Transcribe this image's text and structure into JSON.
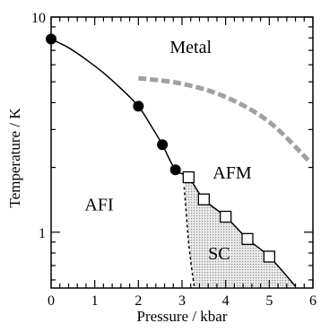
{
  "chart_data": {
    "type": "scatter",
    "title": "",
    "xlabel": "Pressure / kbar",
    "ylabel": "Temperature / K",
    "xlim": [
      0,
      6
    ],
    "ylim": [
      0.55,
      10
    ],
    "yscale": "log",
    "x_ticks": [
      0,
      1,
      2,
      3,
      4,
      5,
      6
    ],
    "y_ticks": [
      1,
      10
    ],
    "grid": false,
    "legend": "none",
    "regions": [
      {
        "label": "Metal",
        "x": 3.2,
        "y": 7.3
      },
      {
        "label": "AFI",
        "x": 1.1,
        "y": 1.35
      },
      {
        "label": "AFM",
        "x": 4.15,
        "y": 1.9
      },
      {
        "label": "SC",
        "x": 3.85,
        "y": 0.8
      }
    ],
    "series": [
      {
        "marker": "filled-circle",
        "x": [
          0.0,
          2.0,
          2.55,
          2.85
        ],
        "y": [
          7.9,
          3.85,
          2.55,
          1.95
        ]
      },
      {
        "marker": "open-square",
        "x": [
          3.15,
          3.5,
          4.0,
          4.5,
          5.0
        ],
        "y": [
          1.8,
          1.42,
          1.18,
          0.93,
          0.77
        ]
      }
    ],
    "lines": {
      "solid_boundary": {
        "x": [
          0,
          0.4,
          0.8,
          1.2,
          1.6,
          2.0,
          2.3,
          2.55,
          2.85,
          3.15,
          3.5,
          4.0,
          4.5,
          5.0,
          5.6
        ],
        "y": [
          7.9,
          7.2,
          6.35,
          5.5,
          4.65,
          3.85,
          3.1,
          2.55,
          1.95,
          1.8,
          1.42,
          1.18,
          0.93,
          0.77,
          0.56
        ]
      },
      "dashed_sc_boundary": {
        "x": [
          3.05,
          3.1,
          3.15,
          3.22,
          3.28
        ],
        "y": [
          1.62,
          1.2,
          0.9,
          0.68,
          0.56
        ]
      },
      "gray_dashed_crossover": {
        "x": [
          2.0,
          3.0,
          4.0,
          5.0,
          5.95
        ],
        "y": [
          5.2,
          4.9,
          4.25,
          3.25,
          2.1
        ]
      }
    },
    "sc_region_x": [
      3.05,
      3.15,
      3.5,
      4.0,
      4.5,
      5.0,
      5.6,
      3.28,
      3.22,
      3.15,
      3.1
    ],
    "sc_region_y": [
      1.75,
      1.8,
      1.42,
      1.18,
      0.93,
      0.77,
      0.56,
      0.56,
      0.68,
      0.9,
      1.2
    ],
    "colors": {
      "axes": "#000000",
      "sc_fill": "#d0d0d0",
      "crossover": "#a0a0a0",
      "marker_fill": "#000000",
      "square_fill": "#ffffff"
    }
  }
}
